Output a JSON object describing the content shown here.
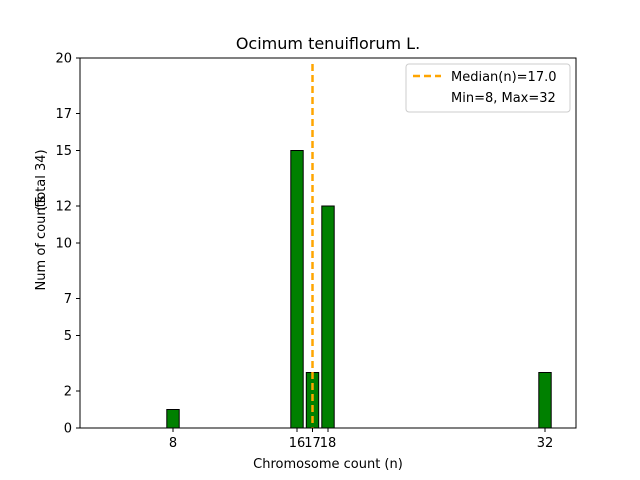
{
  "chart_data": {
    "type": "bar",
    "title": "Ocimum tenuiflorum L.",
    "xlabel": "Chromosome count (n)",
    "ylabel": "Num of counts",
    "ylabel_note": "(Total 34)",
    "xlim": [
      2,
      34
    ],
    "ylim": [
      0,
      20
    ],
    "bars": [
      {
        "x": 8,
        "value": 1
      },
      {
        "x": 16,
        "value": 15
      },
      {
        "x": 17,
        "value": 3
      },
      {
        "x": 18,
        "value": 12
      },
      {
        "x": 32,
        "value": 3
      }
    ],
    "bar_width": 0.8,
    "bar_color": "#008000",
    "bar_edge_color": "#000000",
    "x_ticks": [
      8,
      16,
      17,
      18,
      32
    ],
    "y_ticks": [
      0,
      2,
      5,
      7,
      10,
      12,
      15,
      17,
      20
    ],
    "median": 17.0,
    "median_color": "#FFA500",
    "legend": {
      "placement": "top-right",
      "entries": [
        "Median(n)=17.0",
        "Min=8, Max=32"
      ]
    },
    "grid": false
  }
}
